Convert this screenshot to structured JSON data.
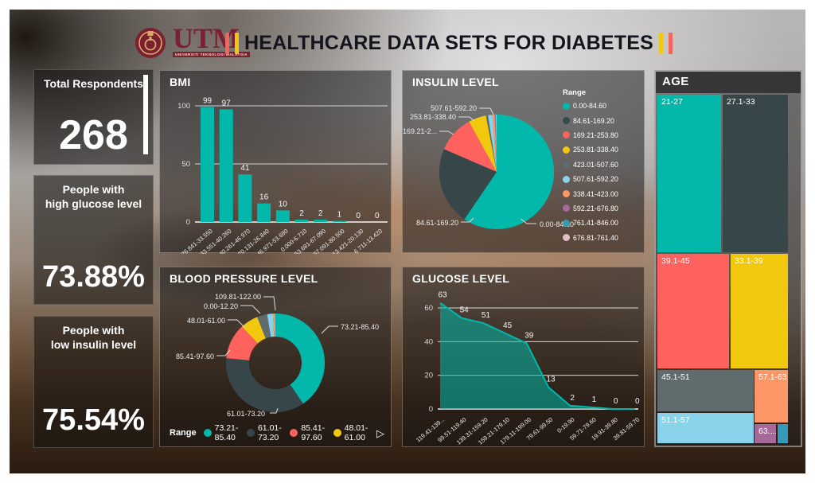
{
  "header": {
    "title": "HEALTHCARE DATA SETS FOR DIABETES",
    "logo": {
      "acronym": "UTM",
      "subtext": "UNIVERSITI TEKNOLOGI MALAYSIA"
    },
    "accent_red": "#F2645C",
    "accent_yellow": "#F2C80F"
  },
  "kpis": [
    {
      "label": "Total Respondents",
      "value": "268"
    },
    {
      "label": "People with\nhigh glucose level",
      "value": "73.88%"
    },
    {
      "label": "People with\nlow insulin level",
      "value": "75.54%"
    }
  ],
  "palette": {
    "teal": "#01B8AA",
    "dark": "#374649",
    "red": "#FD625E",
    "yellow": "#F2C80F",
    "gray": "#5F6B6D",
    "lightblue": "#8AD4EB",
    "orange": "#FE9666",
    "purple": "#A66999",
    "blue": "#3599B8",
    "pink": "#DFBFBF"
  },
  "chart_data": [
    {
      "id": "bmi",
      "type": "bar",
      "title": "BMI",
      "categories": [
        "26.841-33.550",
        "33.551-40.260",
        "40.261-46.970",
        "20.131-26.840",
        "46.971-53.680",
        "0.000-6.710",
        "53.681-67.090",
        "67.091-80.500",
        "13.421-20.130",
        "6.711-13.420"
      ],
      "values": [
        99,
        97,
        41,
        16,
        10,
        2,
        2,
        1,
        0,
        0
      ],
      "ylim": [
        0,
        100
      ],
      "yticks": [
        0,
        50,
        100
      ],
      "bar_color": "#01B8AA",
      "grid": true,
      "legend_position": "none"
    },
    {
      "id": "insulin",
      "type": "pie",
      "title": "INSULIN LEVEL",
      "legend_title": "Range",
      "legend_position": "right",
      "slices": [
        {
          "label": "0.00-84.60",
          "pct": 59.5,
          "color": "#01B8AA"
        },
        {
          "label": "84.61-169.20",
          "pct": 22.0,
          "color": "#374649"
        },
        {
          "label": "169.21-253.80",
          "pct": 10.5,
          "color": "#FD625E"
        },
        {
          "label": "253.81-338.40",
          "pct": 5.0,
          "color": "#F2C80F"
        },
        {
          "label": "423.01-507.60",
          "pct": 0.6,
          "color": "#5F6B6D"
        },
        {
          "label": "507.61-592.20",
          "pct": 1.2,
          "color": "#8AD4EB"
        },
        {
          "label": "338.41-423.00",
          "pct": 0.7,
          "color": "#FE9666"
        },
        {
          "label": "592.21-676.80",
          "pct": 0.2,
          "color": "#A66999"
        },
        {
          "label": "761.41-846.00",
          "pct": 0.1,
          "color": "#3599B8"
        },
        {
          "label": "676.81-761.40",
          "pct": 0.2,
          "color": "#DFBFBF"
        }
      ],
      "callouts": [
        "507.61-592.20",
        "253.81-338.40",
        "169.21-2...",
        "84.61-169.20",
        "0.00-84.60"
      ]
    },
    {
      "id": "bp",
      "type": "donut",
      "title": "BLOOD PRESSURE LEVEL",
      "legend_title": "Range",
      "legend_position": "bottom",
      "legend_count": 4,
      "slices": [
        {
          "label": "73.21-85.40",
          "pct": 40.5,
          "color": "#01B8AA"
        },
        {
          "label": "61.01-73.20",
          "pct": 36.0,
          "color": "#374649"
        },
        {
          "label": "85.41-97.60",
          "pct": 11.7,
          "color": "#FD625E"
        },
        {
          "label": "48.01-61.00",
          "pct": 5.8,
          "color": "#F2C80F"
        },
        {
          "label": "",
          "pct": 3.3,
          "color": "#5F6B6D"
        },
        {
          "label": "0.00-12.20",
          "pct": 1.9,
          "color": "#8AD4EB"
        },
        {
          "label": "109.81-122.00",
          "pct": 0.8,
          "color": "#FE9666"
        }
      ],
      "callouts": [
        "109.81-122.00",
        "0.00-12.20",
        "48.01-61.00",
        "85.41-97.60",
        "61.01-73.20",
        "73.21-85.40"
      ],
      "legend_scroll_arrow": "▷"
    },
    {
      "id": "glucose",
      "type": "area",
      "title": "GLUCOSE LEVEL",
      "categories": [
        "119.41-139...",
        "99.51-119.40",
        "139.31-159.20",
        "159.21-179.10",
        "179.11-199.00",
        "79.61-99.50",
        "0-19.90",
        "59.71-79.60",
        "19.91-39.80",
        "39.81-59.70"
      ],
      "values": [
        63,
        54,
        51,
        45,
        39,
        13,
        2,
        1,
        0,
        0
      ],
      "ylim": [
        0,
        63
      ],
      "yticks": [
        0,
        20,
        40,
        60
      ],
      "line_color": "#01B8AA",
      "fill_opacity": 0.55,
      "grid": true
    },
    {
      "id": "age",
      "type": "treemap",
      "title": "AGE",
      "tiles": [
        {
          "label": "21-27",
          "size_pct": 22.0,
          "color": "#01B8AA"
        },
        {
          "label": "27.1-33",
          "size_pct": 22.3,
          "color": "#374649"
        },
        {
          "label": "39.1-45",
          "size_pct": 18.0,
          "color": "#FD625E"
        },
        {
          "label": "33.1-39",
          "size_pct": 14.0,
          "color": "#F2C80F"
        },
        {
          "label": "45.1-51",
          "size_pct": 9.0,
          "color": "#5F6B6D"
        },
        {
          "label": "57.1-63",
          "size_pct": 3.9,
          "color": "#FE9666"
        },
        {
          "label": "51.1-57",
          "size_pct": 6.5,
          "color": "#8AD4EB"
        },
        {
          "label": "63....",
          "size_pct": 0.9,
          "color": "#A66999"
        },
        {
          "label": "",
          "size_pct": 0.4,
          "color": "#3599B8"
        }
      ]
    }
  ]
}
